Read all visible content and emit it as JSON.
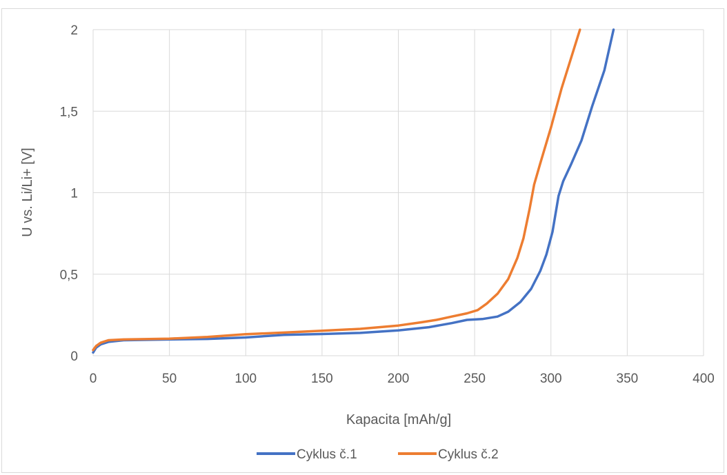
{
  "chart_data": {
    "type": "line",
    "title": "",
    "xlabel": "Kapacita [mAh/g]",
    "ylabel": "U vs. Li/Li+  [V]",
    "xlim": [
      0,
      400
    ],
    "ylim": [
      0,
      2
    ],
    "x_ticks": [
      0,
      50,
      100,
      150,
      200,
      250,
      300,
      350,
      400
    ],
    "y_ticks": [
      0,
      0.5,
      1,
      1.5,
      2
    ],
    "x_tick_labels": [
      "0",
      "50",
      "100",
      "150",
      "200",
      "250",
      "300",
      "350",
      "400"
    ],
    "y_tick_labels": [
      "0",
      "0,5",
      "1",
      "1,5",
      "2"
    ],
    "grid": true,
    "legend_position": "bottom",
    "series": [
      {
        "name": "Cyklus č.1",
        "color": "#4472C4",
        "points": [
          [
            0,
            0.02
          ],
          [
            2,
            0.05
          ],
          [
            5,
            0.07
          ],
          [
            10,
            0.085
          ],
          [
            20,
            0.095
          ],
          [
            50,
            0.1
          ],
          [
            75,
            0.103
          ],
          [
            100,
            0.112
          ],
          [
            125,
            0.128
          ],
          [
            150,
            0.133
          ],
          [
            175,
            0.14
          ],
          [
            200,
            0.155
          ],
          [
            220,
            0.175
          ],
          [
            235,
            0.2
          ],
          [
            245,
            0.22
          ],
          [
            255,
            0.225
          ],
          [
            265,
            0.24
          ],
          [
            272,
            0.27
          ],
          [
            280,
            0.33
          ],
          [
            287,
            0.41
          ],
          [
            293,
            0.52
          ],
          [
            297,
            0.62
          ],
          [
            301,
            0.76
          ],
          [
            305,
            0.98
          ],
          [
            308,
            1.07
          ],
          [
            313,
            1.17
          ],
          [
            320,
            1.32
          ],
          [
            327,
            1.53
          ],
          [
            335,
            1.75
          ],
          [
            341,
            2.0
          ]
        ]
      },
      {
        "name": "Cyklus č.2",
        "color": "#ED7D31",
        "points": [
          [
            0,
            0.035
          ],
          [
            2,
            0.06
          ],
          [
            5,
            0.08
          ],
          [
            10,
            0.095
          ],
          [
            20,
            0.1
          ],
          [
            50,
            0.105
          ],
          [
            75,
            0.115
          ],
          [
            100,
            0.132
          ],
          [
            125,
            0.142
          ],
          [
            150,
            0.153
          ],
          [
            175,
            0.165
          ],
          [
            200,
            0.185
          ],
          [
            215,
            0.205
          ],
          [
            225,
            0.22
          ],
          [
            235,
            0.24
          ],
          [
            245,
            0.26
          ],
          [
            252,
            0.28
          ],
          [
            258,
            0.32
          ],
          [
            265,
            0.38
          ],
          [
            272,
            0.47
          ],
          [
            278,
            0.6
          ],
          [
            282,
            0.72
          ],
          [
            286,
            0.9
          ],
          [
            289,
            1.05
          ],
          [
            293,
            1.18
          ],
          [
            300,
            1.4
          ],
          [
            307,
            1.64
          ],
          [
            313,
            1.82
          ],
          [
            319,
            2.0
          ]
        ]
      }
    ]
  }
}
